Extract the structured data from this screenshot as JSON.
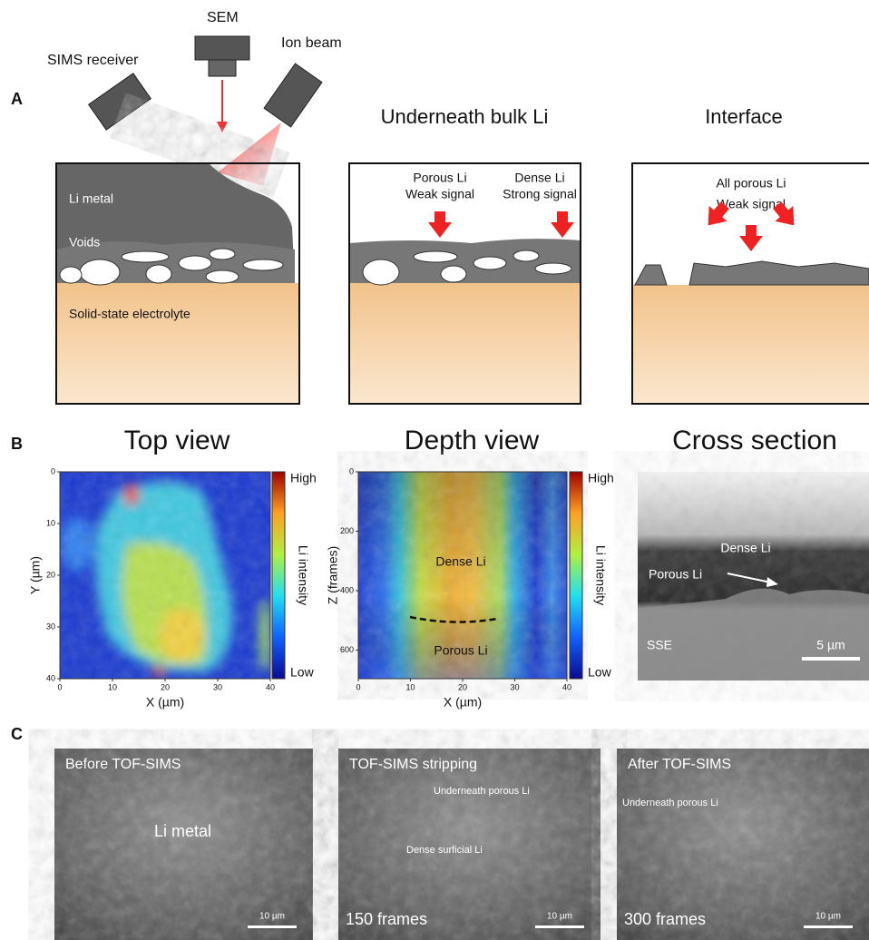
{
  "panel_a": {
    "label": "A",
    "schematic1": {
      "labels": [
        "SEM",
        "Ion beam",
        "SIMS receiver",
        "Li metal",
        "Voids",
        "Solid-state electrolyte"
      ]
    },
    "schematic2": {
      "title": "Underneath bulk Li",
      "labels": [
        "Porous Li",
        "Weak signal",
        "Dense Li",
        "Strong signal"
      ]
    },
    "schematic3": {
      "title": "Interface",
      "labels": [
        "All porous Li",
        "Weak signal"
      ]
    }
  },
  "panel_b": {
    "label": "B",
    "top_view": {
      "title": "Top view",
      "x_label": "X (µm)",
      "y_label": "Y (µm)",
      "x_ticks": [
        0,
        10,
        20,
        30,
        40
      ],
      "y_ticks": [
        0,
        10,
        20,
        30,
        40
      ],
      "colorbar": {
        "high": "High",
        "low": "Low",
        "label": "Li intensity"
      }
    },
    "depth_view": {
      "title": "Depth view",
      "x_label": "X (µm)",
      "y_label": "Z (frames)",
      "x_ticks": [
        0,
        10,
        20,
        30,
        40
      ],
      "y_ticks": [
        0,
        200,
        400,
        600
      ],
      "annotations": [
        "Dense Li",
        "Porous Li"
      ],
      "colorbar": {
        "high": "High",
        "low": "Low",
        "label": "Li intensity"
      }
    },
    "cross_section": {
      "title": "Cross section",
      "labels": [
        "Dense Li",
        "Porous Li",
        "SSE"
      ],
      "scale_bar": "5 µm"
    }
  },
  "panel_c": {
    "label": "C",
    "images": [
      {
        "caption": "Before TOF-SIMS",
        "labels": [
          "Li metal"
        ],
        "scale_bar": "10 µm"
      },
      {
        "caption": "TOF-SIMS stripping",
        "labels": [
          "Underneath porous Li",
          "Dense surficial Li"
        ],
        "frames": "150 frames",
        "scale_bar": "10 µm"
      },
      {
        "caption": "After TOF-SIMS",
        "labels": [
          "Underneath porous Li"
        ],
        "frames": "300 frames",
        "scale_bar": "10 µm"
      }
    ]
  }
}
